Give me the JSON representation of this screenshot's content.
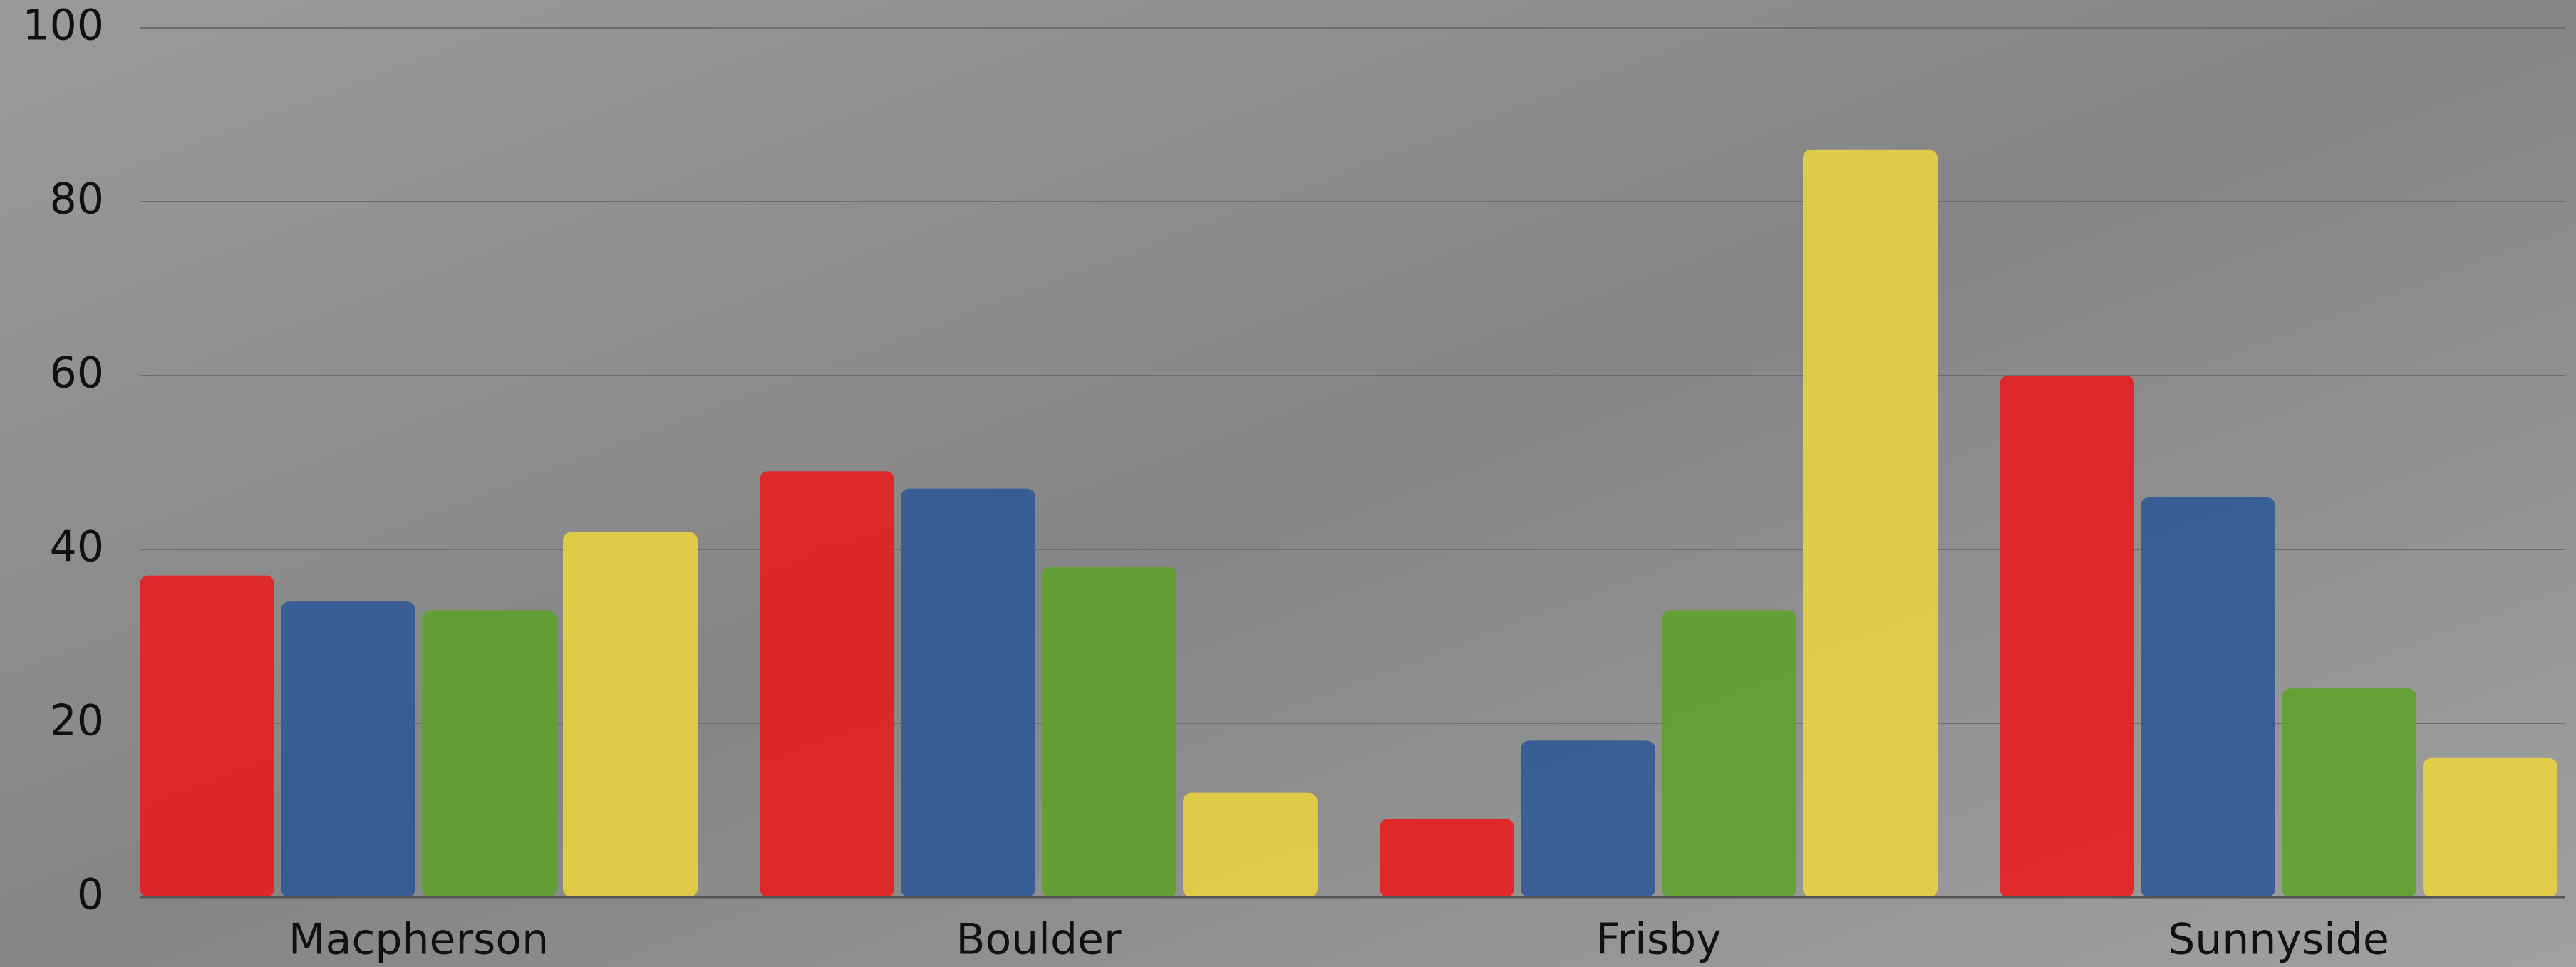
{
  "chart_data": {
    "type": "bar",
    "categories": [
      "Macpherson",
      "Boulder",
      "Frisby",
      "Sunnyside"
    ],
    "series": [
      {
        "color": "#ea1a1c",
        "values": [
          37,
          49,
          9,
          60
        ]
      },
      {
        "color": "#2c5896",
        "values": [
          34,
          47,
          18,
          46
        ]
      },
      {
        "color": "#5ca32a",
        "values": [
          33,
          38,
          33,
          24
        ]
      },
      {
        "color": "#ebd43f",
        "values": [
          42,
          12,
          86,
          16
        ]
      }
    ],
    "ylim": [
      0,
      100
    ],
    "yticks": [
      0,
      20,
      40,
      60,
      80,
      100
    ],
    "grid": true
  }
}
